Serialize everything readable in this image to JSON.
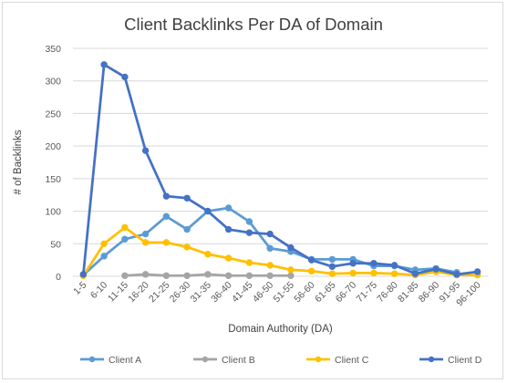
{
  "chart_data": {
    "type": "line",
    "title": "Client Backlinks Per DA of Domain",
    "xlabel": "Domain Authority (DA)",
    "ylabel": "# of Backlinks",
    "ylim": [
      0,
      350
    ],
    "yticks": [
      0,
      50,
      100,
      150,
      200,
      250,
      300,
      350
    ],
    "grid": true,
    "legend_position": "bottom",
    "categories": [
      "1-5",
      "6-10",
      "11-15",
      "16-20",
      "21-25",
      "26-30",
      "31-35",
      "36-40",
      "41-45",
      "46-50",
      "51-55",
      "56-60",
      "61-65",
      "66-70",
      "71-75",
      "76-80",
      "81-85",
      "86-90",
      "91-95",
      "96-100"
    ],
    "series": [
      {
        "name": "Client A",
        "color": "#5b9bd5",
        "values": [
          2,
          31,
          57,
          65,
          92,
          72,
          100,
          105,
          84,
          43,
          38,
          26,
          26,
          26,
          16,
          16,
          10,
          12,
          6,
          null
        ]
      },
      {
        "name": "Client B",
        "color": "#a5a5a5",
        "values": [
          null,
          null,
          1,
          3,
          1,
          1,
          3,
          1,
          1,
          1,
          1,
          null,
          null,
          null,
          null,
          null,
          null,
          null,
          null,
          null
        ]
      },
      {
        "name": "Client C",
        "color": "#ffc000",
        "values": [
          1,
          50,
          75,
          52,
          52,
          45,
          34,
          28,
          21,
          17,
          10,
          8,
          4,
          5,
          5,
          4,
          2,
          7,
          2,
          2
        ]
      },
      {
        "name": "Client D",
        "color": "#4472c4",
        "values": [
          3,
          325,
          306,
          193,
          123,
          120,
          100,
          72,
          67,
          65,
          44,
          25,
          15,
          20,
          20,
          17,
          4,
          11,
          3,
          7
        ]
      }
    ]
  }
}
